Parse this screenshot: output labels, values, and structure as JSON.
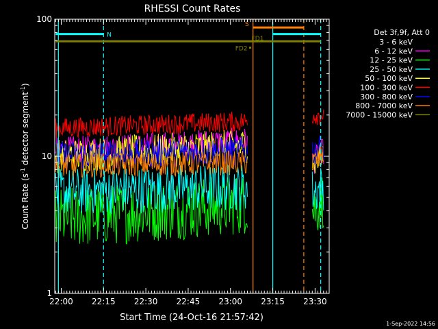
{
  "chart_data": {
    "type": "line",
    "title": "RHESSI Count Rates",
    "xlabel": "Start Time (24-Oct-16 21:57:42)",
    "ylabel_main": "Count Rate (s",
    "ylabel_exp1": "-1",
    "ylabel_mid": " detector segment",
    "ylabel_exp2": "-1",
    "ylabel_end": ")",
    "xlim": [
      "21:57:42",
      "23:35:00"
    ],
    "ylim": [
      1,
      100
    ],
    "yscale": "log",
    "x_ticks": [
      "22:00",
      "22:15",
      "22:30",
      "22:45",
      "23:00",
      "23:15",
      "23:30"
    ],
    "y_ticks": [
      "1",
      "10",
      "100"
    ],
    "legend_header": "Det 3f,9f, Att 0",
    "legend_position": "top-right, outside plot",
    "series": [
      {
        "name": "3 - 6 keV",
        "color": "#000000",
        "level_segments": [
          {
            "x": [
              "21:58",
              "23:06"
            ],
            "y": [
              10,
              14
            ]
          },
          {
            "x": [
              "23:29",
              "23:33"
            ],
            "y": [
              8,
              11
            ]
          }
        ]
      },
      {
        "name": "6 - 12 keV",
        "color": "#ff00ff",
        "level_segments": [
          {
            "x": [
              "21:58",
              "23:06"
            ],
            "y": [
              11,
              13
            ]
          },
          {
            "x": [
              "23:29",
              "23:33"
            ],
            "y": [
              9,
              11
            ]
          }
        ]
      },
      {
        "name": "12 - 25 keV",
        "color": "#00ff00",
        "level_segments": [
          {
            "x": [
              "21:58",
              "23:06"
            ],
            "y": [
              3.5,
              4.5
            ]
          },
          {
            "x": [
              "23:29",
              "23:33"
            ],
            "y": [
              4,
              5
            ]
          }
        ]
      },
      {
        "name": "25 - 50 keV",
        "color": "#00ffff",
        "level_segments": [
          {
            "x": [
              "21:58",
              "23:06"
            ],
            "y": [
              5.5,
              6
            ]
          },
          {
            "x": [
              "23:29",
              "23:33"
            ],
            "y": [
              5.5,
              6
            ]
          }
        ]
      },
      {
        "name": "50 - 100 keV",
        "color": "#ffff00",
        "level_segments": [
          {
            "x": [
              "21:58",
              "23:06"
            ],
            "y": [
              10,
              12
            ]
          },
          {
            "x": [
              "23:29",
              "23:33"
            ],
            "y": [
              9,
              10
            ]
          }
        ]
      },
      {
        "name": "100 - 300 keV",
        "color": "#ff0000",
        "level_segments": [
          {
            "x": [
              "21:58",
              "23:06"
            ],
            "y": [
              16,
              18
            ]
          },
          {
            "x": [
              "23:29",
              "23:33"
            ],
            "y": [
              20,
              20
            ]
          }
        ]
      },
      {
        "name": "300 - 800 keV",
        "color": "#0000ff",
        "level_segments": [
          {
            "x": [
              "21:58",
              "23:06"
            ],
            "y": [
              10,
              11
            ]
          },
          {
            "x": [
              "23:29",
              "23:33"
            ],
            "y": [
              11,
              11
            ]
          }
        ]
      },
      {
        "name": "800 - 7000 keV",
        "color": "#ff8000",
        "level_segments": [
          {
            "x": [
              "21:58",
              "23:06"
            ],
            "y": [
              8.5,
              9
            ]
          },
          {
            "x": [
              "23:29",
              "23:33"
            ],
            "y": [
              9,
              10
            ]
          }
        ]
      },
      {
        "name": "7000 - 15000 keV",
        "color": "#808000",
        "level_segments": []
      }
    ],
    "annotations": [
      {
        "label": "N",
        "color": "#00ffff",
        "x": [
          "21:58",
          "22:15"
        ],
        "y": 78
      },
      {
        "label": "",
        "color": "#00ffff",
        "x": [
          "23:15",
          "23:32"
        ],
        "y": 78
      },
      {
        "label": "S",
        "color": "#ff8000",
        "x": [
          "23:08",
          "23:26"
        ],
        "y": 87
      },
      {
        "label": "FD1",
        "color": "#808000",
        "x": [
          "21:58",
          "23:32"
        ],
        "y": 69
      },
      {
        "label": "FD2",
        "color": "#808000",
        "x": [
          "23:07",
          "23:07"
        ],
        "y": 62
      }
    ],
    "vertical_markers": [
      {
        "x": "21:59",
        "color": "#00ffff",
        "style": "solid"
      },
      {
        "x": "22:15",
        "color": "#00ffff",
        "style": "dashed"
      },
      {
        "x": "23:08",
        "color": "#ff8000",
        "style": "solid"
      },
      {
        "x": "23:15",
        "color": "#00ffff",
        "style": "solid"
      },
      {
        "x": "23:26",
        "color": "#ff8000",
        "style": "dashed"
      },
      {
        "x": "23:32",
        "color": "#00ffff",
        "style": "dashed"
      }
    ],
    "footer_date": "1-Sep-2022 14:56"
  }
}
